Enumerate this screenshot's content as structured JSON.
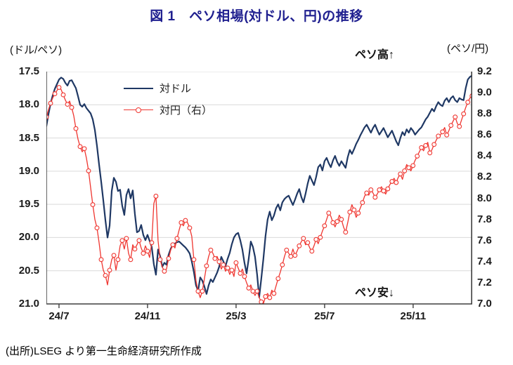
{
  "chart_data": {
    "type": "line",
    "title": "図 1　ペソ相場(対ドル、円)の推移",
    "title_color": "#1f1f8f",
    "source_note": "(出所)LSEG より第一生命経済研究所作成",
    "annotations": {
      "top": "ペソ高↑",
      "bottom": "ペソ安↓"
    },
    "grid_color": "#d9d9d9",
    "axis_color": "#3f3f3f",
    "x_axis": {
      "unit": "months since 2024-07 (YY/M labels)",
      "range": [
        -0.57,
        18.67
      ],
      "tick_positions": [
        0,
        4,
        8,
        12,
        16
      ],
      "tick_labels": [
        "24/7",
        "24/11",
        "25/3",
        "25/7",
        "25/11"
      ]
    },
    "left_axis": {
      "label": "(ドル/ペソ)",
      "series_name": "対ドル",
      "inverted": true,
      "range": [
        17.5,
        21.0
      ],
      "tick_step": 0.5,
      "ticks": [
        "17.5",
        "18.0",
        "18.5",
        "19.0",
        "19.5",
        "20.0",
        "20.5",
        "21.0"
      ]
    },
    "right_axis": {
      "label": "(ペソ/円)",
      "series_name": "対円（右）",
      "inverted": false,
      "range": [
        7.0,
        9.2
      ],
      "tick_step": 0.2,
      "ticks": [
        "9.2",
        "9.0",
        "8.8",
        "8.6",
        "8.4",
        "8.2",
        "8.0",
        "7.8",
        "7.6",
        "7.4",
        "7.2",
        "7.0"
      ]
    },
    "legend": {
      "items": [
        {
          "label": "対ドル"
        },
        {
          "label": "対円（右）"
        }
      ]
    },
    "series": [
      {
        "name": "対ドル",
        "axis": "left",
        "color": "#1f3864",
        "line_width": 2.2,
        "marker": "none",
        "x_start": -0.57,
        "x_step": 0.0952,
        "values": [
          18.32,
          18.14,
          17.98,
          17.86,
          17.76,
          17.69,
          17.62,
          17.59,
          17.61,
          17.67,
          17.71,
          17.64,
          17.63,
          17.69,
          17.75,
          17.87,
          18.0,
          18.03,
          17.99,
          18.05,
          18.09,
          18.13,
          18.22,
          18.38,
          18.62,
          18.9,
          19.16,
          19.44,
          19.74,
          20.0,
          19.82,
          19.3,
          19.1,
          19.16,
          19.3,
          19.28,
          19.52,
          19.66,
          19.36,
          19.27,
          19.41,
          19.29,
          19.64,
          19.92,
          19.9,
          19.81,
          19.96,
          20.04,
          19.96,
          20.05,
          20.14,
          20.4,
          20.56,
          20.18,
          20.28,
          20.44,
          20.38,
          20.41,
          20.26,
          20.17,
          20.11,
          20.09,
          20.07,
          20.06,
          20.09,
          20.12,
          20.15,
          20.19,
          20.24,
          20.36,
          20.52,
          20.72,
          20.8,
          20.6,
          20.65,
          20.74,
          20.85,
          20.72,
          20.63,
          20.67,
          20.6,
          20.53,
          20.44,
          20.29,
          20.36,
          20.43,
          20.32,
          20.23,
          20.1,
          20.0,
          19.95,
          19.93,
          20.04,
          20.18,
          20.38,
          20.54,
          20.32,
          20.06,
          20.14,
          20.29,
          20.56,
          20.9,
          20.62,
          20.32,
          19.98,
          19.73,
          19.61,
          19.74,
          19.67,
          19.56,
          19.5,
          19.59,
          19.47,
          19.42,
          19.39,
          19.37,
          19.44,
          19.51,
          19.43,
          19.34,
          19.27,
          19.39,
          19.47,
          19.34,
          19.19,
          19.07,
          19.14,
          19.21,
          19.09,
          18.94,
          18.9,
          18.99,
          18.85,
          18.8,
          18.88,
          18.94,
          18.84,
          18.77,
          18.86,
          18.92,
          18.85,
          18.9,
          18.95,
          18.79,
          18.68,
          18.74,
          18.67,
          18.59,
          18.53,
          18.46,
          18.4,
          18.34,
          18.3,
          18.36,
          18.42,
          18.35,
          18.3,
          18.38,
          18.45,
          18.4,
          18.35,
          18.42,
          18.49,
          18.44,
          18.39,
          18.47,
          18.55,
          18.61,
          18.5,
          18.41,
          18.46,
          18.37,
          18.42,
          18.35,
          18.39,
          18.45,
          18.41,
          18.37,
          18.34,
          18.28,
          18.22,
          18.18,
          18.12,
          18.06,
          18.1,
          18.02,
          17.96,
          18.0,
          18.02,
          17.94,
          17.9,
          17.96,
          17.9,
          17.87,
          17.93,
          17.96,
          17.9,
          17.92,
          17.93,
          17.75,
          17.62,
          17.58,
          17.56
        ]
      },
      {
        "name": "対円（右）",
        "axis": "right",
        "color": "#ef3630",
        "line_width": 1.3,
        "marker": "circle",
        "marker_every": 2,
        "x_start": -0.57,
        "x_step": 0.0952,
        "values": [
          8.77,
          8.84,
          8.9,
          8.95,
          8.99,
          9.02,
          9.05,
          9.03,
          8.98,
          8.93,
          8.89,
          8.92,
          8.86,
          8.78,
          8.66,
          8.56,
          8.49,
          8.44,
          8.47,
          8.38,
          8.26,
          8.1,
          7.94,
          7.8,
          7.72,
          7.58,
          7.42,
          7.32,
          7.27,
          7.18,
          7.32,
          7.42,
          7.46,
          7.32,
          7.42,
          7.55,
          7.6,
          7.52,
          7.62,
          7.48,
          7.42,
          7.56,
          7.52,
          7.56,
          7.6,
          7.53,
          7.48,
          7.55,
          7.5,
          7.44,
          7.58,
          7.95,
          8.02,
          7.6,
          7.42,
          7.35,
          7.31,
          7.33,
          7.43,
          7.51,
          7.56,
          7.53,
          7.62,
          7.7,
          7.77,
          7.74,
          7.79,
          7.77,
          7.72,
          7.64,
          7.42,
          7.22,
          7.12,
          7.06,
          7.12,
          7.24,
          7.36,
          7.45,
          7.51,
          7.48,
          7.43,
          7.45,
          7.4,
          7.33,
          7.37,
          7.31,
          7.34,
          7.28,
          7.32,
          7.26,
          7.39,
          7.34,
          7.29,
          7.33,
          7.26,
          7.2,
          7.15,
          7.18,
          7.12,
          7.08,
          7.12,
          7.06,
          7.02,
          7.0,
          7.07,
          7.1,
          7.06,
          7.13,
          7.1,
          7.17,
          7.24,
          7.3,
          7.37,
          7.45,
          7.51,
          7.48,
          7.45,
          7.52,
          7.46,
          7.5,
          7.55,
          7.59,
          7.62,
          7.56,
          7.58,
          7.53,
          7.5,
          7.55,
          7.61,
          7.57,
          7.63,
          7.69,
          7.74,
          7.8,
          7.86,
          7.83,
          7.77,
          7.73,
          7.78,
          7.84,
          7.8,
          7.73,
          7.68,
          7.77,
          7.87,
          7.94,
          7.89,
          7.82,
          7.86,
          7.91,
          7.96,
          8.02,
          8.05,
          8.03,
          8.08,
          8.05,
          8.01,
          8.04,
          8.08,
          8.11,
          8.07,
          8.04,
          8.09,
          8.13,
          8.16,
          8.19,
          8.15,
          8.2,
          8.23,
          8.18,
          8.26,
          8.32,
          8.29,
          8.26,
          8.31,
          8.36,
          8.4,
          8.44,
          8.48,
          8.45,
          8.5,
          8.53,
          8.43,
          8.46,
          8.51,
          8.55,
          8.59,
          8.6,
          8.63,
          8.67,
          8.6,
          8.64,
          8.69,
          8.73,
          8.77,
          8.71,
          8.68,
          8.74,
          8.8,
          8.86,
          8.91,
          8.95,
          8.97
        ]
      }
    ]
  }
}
